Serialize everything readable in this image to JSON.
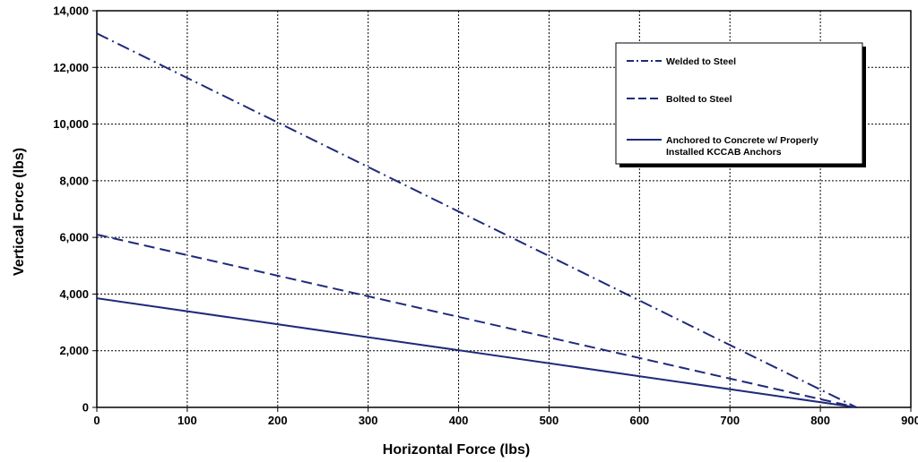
{
  "chart_data": {
    "type": "line",
    "title": "",
    "xlabel": "Horizontal Force (lbs)",
    "ylabel": "Vertical Force (lbs)",
    "xlim": [
      0,
      900
    ],
    "ylim": [
      0,
      14000
    ],
    "x_ticks": [
      0,
      100,
      200,
      300,
      400,
      500,
      600,
      700,
      800,
      900
    ],
    "y_ticks": [
      0,
      2000,
      4000,
      6000,
      8000,
      10000,
      12000,
      14000
    ],
    "x_tick_labels": [
      "0",
      "100",
      "200",
      "300",
      "400",
      "500",
      "600",
      "700",
      "800",
      "900"
    ],
    "y_tick_labels": [
      "0",
      "2,000",
      "4,000",
      "6,000",
      "8,000",
      "10,000",
      "12,000",
      "14,000"
    ],
    "grid": true,
    "legend_position": "top-right",
    "series": [
      {
        "name": "Welded to Steel",
        "style": "dash-dot",
        "color": "#1f2a7a",
        "x": [
          0,
          840
        ],
        "y": [
          13200,
          0
        ]
      },
      {
        "name": "Bolted to Steel",
        "style": "dashed",
        "color": "#1f2a7a",
        "x": [
          0,
          840
        ],
        "y": [
          6100,
          0
        ]
      },
      {
        "name": "Anchored to Concrete w/ Properly Installed KCCAB Anchors",
        "label_lines": [
          "Anchored to Concrete w/ Properly",
          "Installed KCCAB Anchors"
        ],
        "style": "solid",
        "color": "#1f2a7a",
        "x": [
          0,
          840
        ],
        "y": [
          3850,
          0
        ]
      }
    ]
  }
}
